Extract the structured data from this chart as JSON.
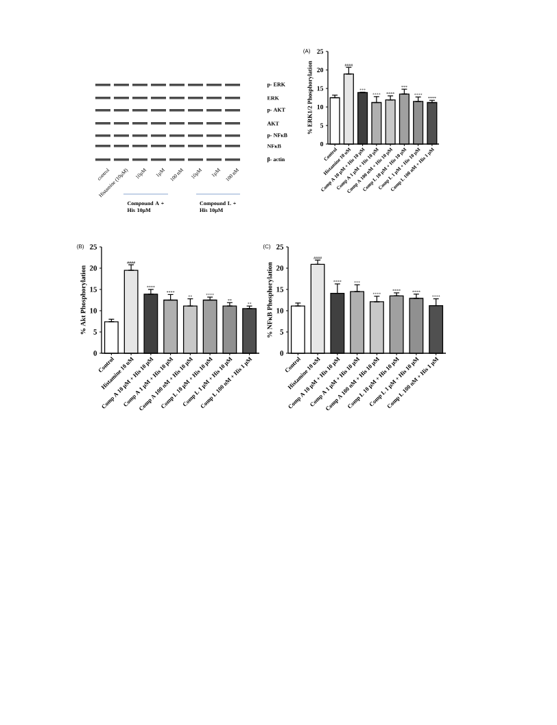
{
  "chart_data": [
    {
      "type": "other",
      "annotations": [
        "p- ERK",
        "ERK",
        "p- AKT",
        "AKT",
        "p- NFκB",
        "NFκB",
        "β- actin",
        "control",
        "Histamine (10µM)",
        "10µM",
        "1µM",
        "100 nM",
        "10µM",
        "1µM",
        "100 nM",
        "Compound A + His 10µM",
        "Compound L + His 10µM"
      ]
    },
    {
      "type": "bar",
      "title": "(A)",
      "ylabel": "% ERK1/2 Phosphorylation",
      "categories": [
        "Control",
        "Histamine 10 uM",
        "Comp A 10 µM + His 10 µM",
        "Comp A 1 µM + His 10 µM",
        "Comp A 100 nM + His 10 µM",
        "Comp L 10 µM + His 10 µM",
        "Comp L 1 µM + His 10 µM",
        "Comp L 100 nM + His 1 µM"
      ],
      "values": [
        12.5,
        18.9,
        13.9,
        11.2,
        11.9,
        13.5,
        11.5,
        11.2
      ],
      "colors": [
        "#ffffff",
        "#e6e6e6",
        "#404040",
        "#b0b0b0",
        "#c8c8c8",
        "#a0a0a0",
        "#909090",
        "#505050"
      ],
      "errors": [
        [
          12.5,
          13.2
        ],
        [
          18.9,
          20.7
        ],
        [
          13.9,
          14.0
        ],
        [
          11.2,
          12.8
        ],
        [
          11.9,
          13.0
        ],
        [
          13.5,
          14.8
        ],
        [
          11.5,
          12.7
        ],
        [
          11.2,
          11.8
        ]
      ],
      "ylim": [
        0,
        25
      ],
      "yticks": [
        0,
        5,
        10,
        15,
        20,
        25
      ],
      "annotations": [
        {
          "text": "####",
          "x": "Histamine 10 uM",
          "y": 20.7
        },
        {
          "text": "***",
          "x": "Comp A 10 µM + His 10 µM",
          "y": 14.0
        },
        {
          "text": "****",
          "x": "Comp A 1 µM + His 10 µM",
          "y": 12.8
        },
        {
          "text": "****",
          "x": "Comp A 100 nM + His 10 µM",
          "y": 13.0
        },
        {
          "text": "***",
          "x": "Comp L 10 µM + His 10 µM",
          "y": 14.8
        },
        {
          "text": "****",
          "x": "Comp L 1 µM + His 10 µM",
          "y": 12.7
        },
        {
          "text": "****",
          "x": "Comp L 100 nM + His 1 µM",
          "y": 11.8
        }
      ]
    },
    {
      "type": "bar",
      "title": "(B)",
      "ylabel": "% Akt Phosphorylation",
      "categories": [
        "Control",
        "Histamine 10 uM",
        "Comp A 10 µM + His 10 µM",
        "Comp A 1 µM + His 10 µM",
        "Comp A 100 nM + His 10 µM",
        "Comp L 10 µM + His 10 µM",
        "Comp L 1 µM + His 10 µM",
        "Comp L 100 nM + His 1 µM"
      ],
      "values": [
        7.4,
        19.5,
        13.9,
        12.5,
        11.1,
        12.5,
        11.1,
        10.5
      ],
      "colors": [
        "#ffffff",
        "#e6e6e6",
        "#404040",
        "#b0b0b0",
        "#c8c8c8",
        "#a0a0a0",
        "#909090",
        "#505050"
      ],
      "errors": [
        [
          7.4,
          8.0
        ],
        [
          19.5,
          20.8
        ],
        [
          13.9,
          15.0
        ],
        [
          12.5,
          13.8
        ],
        [
          11.1,
          12.8
        ],
        [
          12.5,
          13.2
        ],
        [
          11.1,
          11.9
        ],
        [
          10.5,
          11.1
        ]
      ],
      "ylim": [
        0,
        25
      ],
      "yticks": [
        0,
        5,
        10,
        15,
        20,
        25
      ],
      "annotations": [
        {
          "text": "####",
          "x": "Histamine 10 uM",
          "y": 20.8
        },
        {
          "text": "****",
          "x": "Comp A 10 µM + His 10 µM",
          "y": 15.0
        },
        {
          "text": "****",
          "x": "Comp A 1 µM + His 10 µM",
          "y": 13.8
        },
        {
          "text": "**",
          "x": "Comp A 100 nM + His 10 µM",
          "y": 12.8
        },
        {
          "text": "****",
          "x": "Comp L 10 µM + His 10 µM",
          "y": 13.2
        },
        {
          "text": "**",
          "x": "Comp L 1 µM + His 10 µM",
          "y": 11.9
        },
        {
          "text": "**",
          "x": "Comp L 100 nM + His 1 µM",
          "y": 11.1
        }
      ]
    },
    {
      "type": "bar",
      "title": "(C)",
      "ylabel": "% NFκB Phosphorylation",
      "categories": [
        "Control",
        "Histamine 10 uM",
        "Comp A 10 µM + His 10 µM",
        "Comp A 1 µM + His 10 µM",
        "Comp A 100 nM + His 10 µM",
        "Comp L 10 µM + His 10 µM",
        "Comp L 1 µM + His 10 µM",
        "Comp L 100 nM + His 1 µM"
      ],
      "values": [
        11.1,
        20.9,
        14.1,
        14.5,
        12.1,
        13.5,
        12.9,
        11.2
      ],
      "colors": [
        "#ffffff",
        "#e6e6e6",
        "#404040",
        "#b0b0b0",
        "#c8c8c8",
        "#a0a0a0",
        "#909090",
        "#505050"
      ],
      "errors": [
        [
          11.1,
          11.8
        ],
        [
          20.9,
          21.9
        ],
        [
          14.1,
          16.3
        ],
        [
          14.5,
          16.1
        ],
        [
          12.1,
          13.4
        ],
        [
          13.5,
          14.2
        ],
        [
          12.9,
          13.9
        ],
        [
          11.2,
          12.8
        ]
      ],
      "ylim": [
        0,
        25
      ],
      "yticks": [
        0,
        5,
        10,
        15,
        20,
        25
      ],
      "annotations": [
        {
          "text": "####",
          "x": "Histamine 10 uM",
          "y": 21.9
        },
        {
          "text": "****",
          "x": "Comp A 10 µM + His 10 µM",
          "y": 16.3
        },
        {
          "text": "***",
          "x": "Comp A 1 µM + His 10 µM",
          "y": 16.1
        },
        {
          "text": "****",
          "x": "Comp A 100 nM + His 10 µM",
          "y": 13.4
        },
        {
          "text": "****",
          "x": "Comp L 10 µM + His 10 µM",
          "y": 14.2
        },
        {
          "text": "****",
          "x": "Comp L 1 µM + His 10 µM",
          "y": 13.9
        },
        {
          "text": "****",
          "x": "Comp L 100 nM + His 1 µM",
          "y": 12.8
        }
      ]
    }
  ]
}
